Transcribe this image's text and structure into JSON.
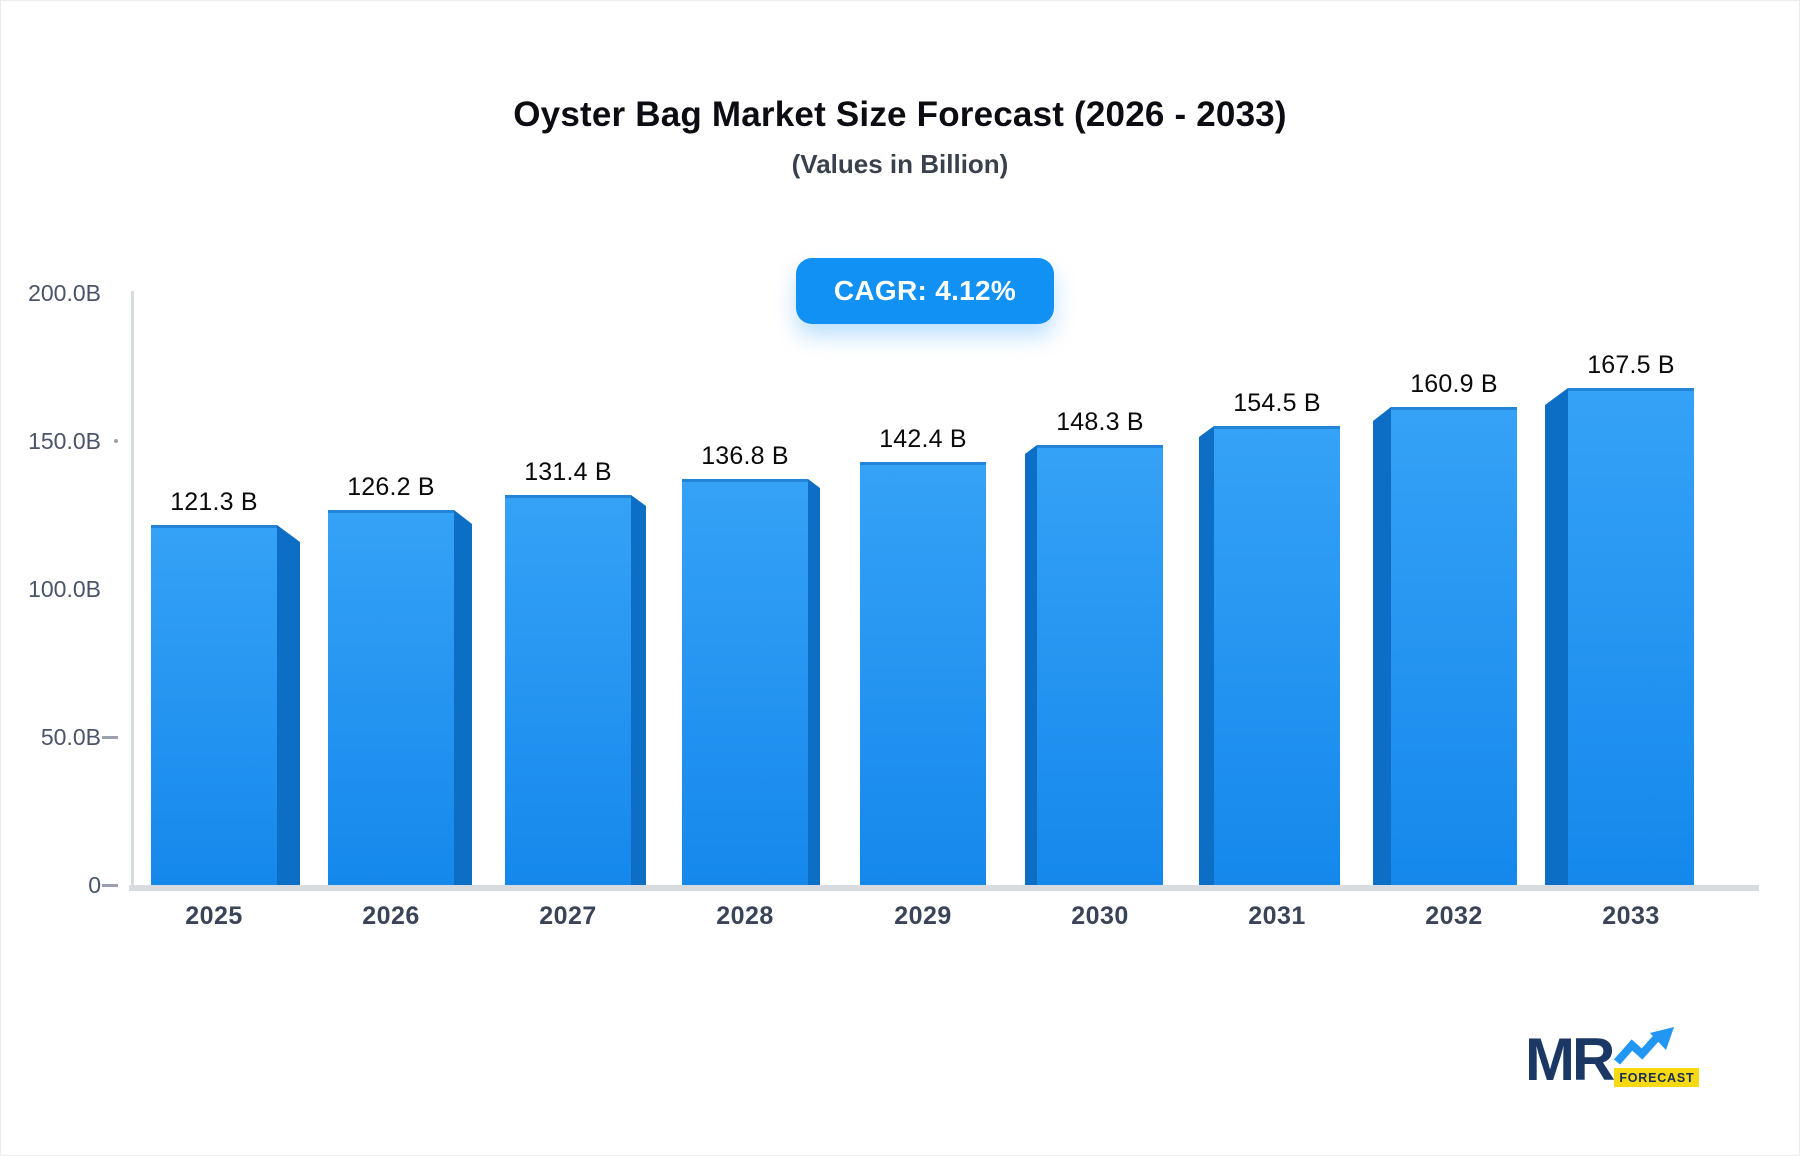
{
  "header": {
    "title": "Oyster Bag Market Size Forecast (2026 - 2033)",
    "subtitle": "(Values in Billion)"
  },
  "badge": {
    "label": "CAGR: 4.12%",
    "bg": "#1191f4",
    "text_color": "#ffffff"
  },
  "chart_data": {
    "type": "bar",
    "title": "Oyster Bag Market Size Forecast (2026 - 2033)",
    "subtitle": "(Values in Billion)",
    "categories": [
      "2025",
      "2026",
      "2027",
      "2028",
      "2029",
      "2030",
      "2031",
      "2032",
      "2033"
    ],
    "values": [
      121.3,
      126.2,
      131.4,
      136.8,
      142.4,
      148.3,
      154.5,
      160.9,
      167.5
    ],
    "bar_labels": [
      "121.3 B",
      "126.2 B",
      "131.4 B",
      "136.8 B",
      "142.4 B",
      "148.3 B",
      "154.5 B",
      "160.9 B",
      "167.5 B"
    ],
    "unit": "Billion",
    "cagr": "4.12%",
    "ylim": [
      0,
      200
    ],
    "ytick_labels": [
      "200.0B",
      "150.0B",
      "100.0B",
      "50.0B",
      "0"
    ],
    "ytick_marks": [
      "none",
      "dot",
      "none",
      "dash",
      "dash"
    ],
    "grid": false,
    "legend": "none",
    "bar_color_top": "#35a2f6",
    "bar_color_bottom": "#1588ec",
    "bar_side_color": "#0c6ec4"
  },
  "logo": {
    "mr": "MR",
    "forecast": "FORECAST",
    "navy": "#1b3764",
    "yellow": "#f6d911",
    "arrow_blue": "#2196f3"
  }
}
